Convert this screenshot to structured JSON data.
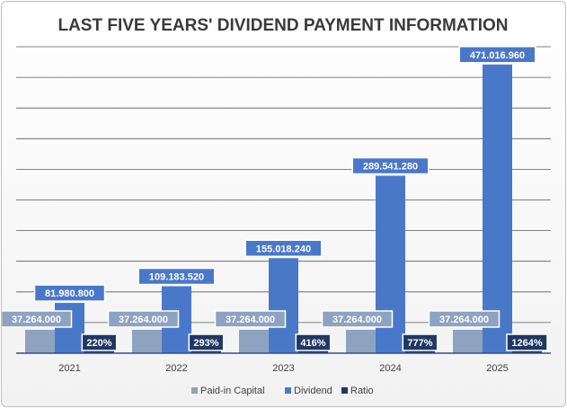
{
  "chart_data": {
    "type": "bar",
    "title": "LAST FIVE YEARS' DIVIDEND PAYMENT INFORMATION",
    "categories": [
      "2021",
      "2022",
      "2023",
      "2024",
      "2025"
    ],
    "ylim": [
      0,
      500000000
    ],
    "grid": true,
    "legend_position": "bottom",
    "series": [
      {
        "name": "Paid-in Capital",
        "color": "#8ea3bf",
        "values": [
          37264000,
          37264000,
          37264000,
          37264000,
          37264000
        ],
        "labels": [
          "37.264.000",
          "37.264.000",
          "37.264.000",
          "37.264.000",
          "37.264.000"
        ]
      },
      {
        "name": "Dividend",
        "color": "#4a78c9",
        "values": [
          81980800,
          109183520,
          155018240,
          289541280,
          471016960
        ],
        "labels": [
          "81.980.800",
          "109.183.520",
          "155.018.240",
          "289.541.280",
          "471.016.960"
        ]
      },
      {
        "name": "Ratio",
        "color": "#1f3864",
        "values": [
          220,
          293,
          416,
          777,
          1264
        ],
        "labels": [
          "220%",
          "293%",
          "416%",
          "777%",
          "1264%"
        ]
      }
    ]
  }
}
